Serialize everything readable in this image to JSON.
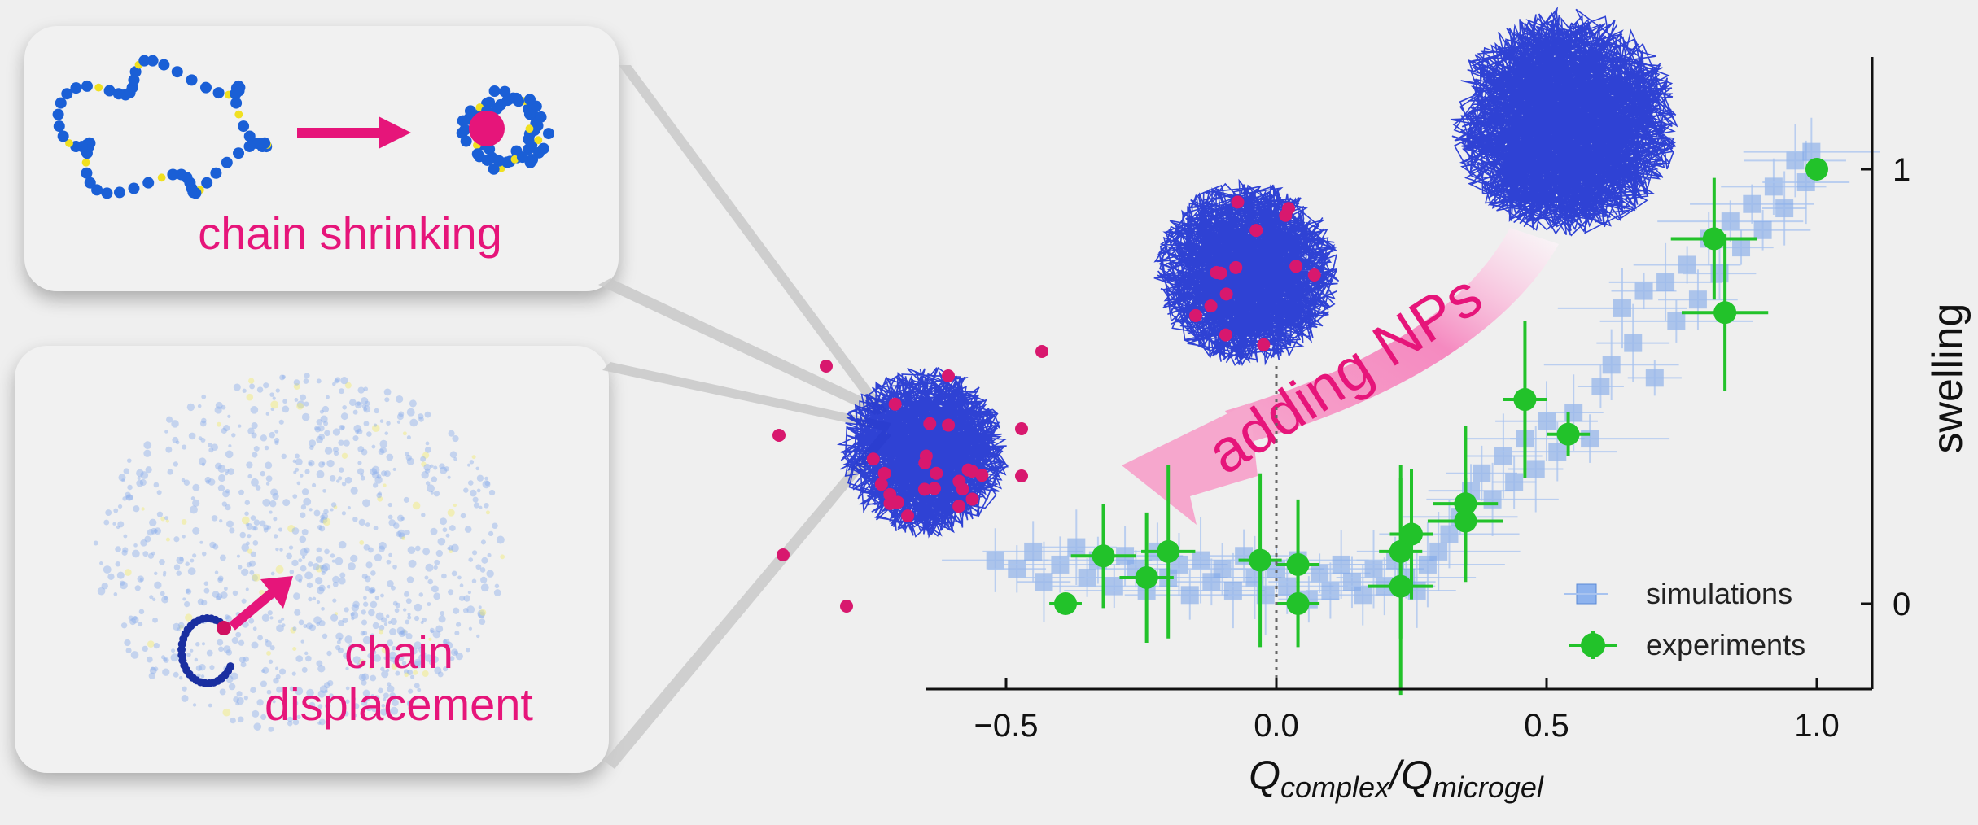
{
  "panels": {
    "top_label": "chain shrinking",
    "bottom_label_line1": "chain",
    "bottom_label_line2": "displacement"
  },
  "annotation": {
    "arrow_text": "adding NPs"
  },
  "colors": {
    "magenta": "#e6157a",
    "simulations": "#7fa8e8",
    "experiments": "#22c22a",
    "polymer": "#1a2fd0"
  },
  "icons": [
    "polymer-chain-icon",
    "nanoparticle-icon",
    "microgel-icon",
    "arrow-icon"
  ],
  "chart_data": {
    "type": "scatter",
    "title": "",
    "xlabel_main": "Q",
    "xlabel_sub1": "complex",
    "xlabel_sep": "/Q",
    "xlabel_sub2": "microgel",
    "ylabel": "swelling",
    "xlim": [
      -0.63,
      1.1
    ],
    "ylim": [
      -0.2,
      1.25
    ],
    "x_ticks": [
      -0.5,
      0.0,
      0.5,
      1.0
    ],
    "x_tick_labels": [
      "−0.5",
      "0.0",
      "0.5",
      "1.0"
    ],
    "y_ticks": [
      0,
      1
    ],
    "y_tick_labels": [
      "0",
      "1"
    ],
    "y_axis_position": "right",
    "grid": false,
    "legend_position": "bottom-right",
    "reference_line_x": 0.0,
    "series": [
      {
        "name": "simulations",
        "marker": "square",
        "points": [
          {
            "x": -0.52,
            "y": 0.1
          },
          {
            "x": -0.48,
            "y": 0.08
          },
          {
            "x": -0.45,
            "y": 0.12
          },
          {
            "x": -0.43,
            "y": 0.05
          },
          {
            "x": -0.4,
            "y": 0.09
          },
          {
            "x": -0.37,
            "y": 0.13
          },
          {
            "x": -0.35,
            "y": 0.06
          },
          {
            "x": -0.33,
            "y": 0.1
          },
          {
            "x": -0.3,
            "y": 0.04
          },
          {
            "x": -0.28,
            "y": 0.11
          },
          {
            "x": -0.26,
            "y": 0.08
          },
          {
            "x": -0.24,
            "y": 0.03
          },
          {
            "x": -0.22,
            "y": 0.12
          },
          {
            "x": -0.2,
            "y": 0.06
          },
          {
            "x": -0.18,
            "y": 0.09
          },
          {
            "x": -0.16,
            "y": 0.02
          },
          {
            "x": -0.14,
            "y": 0.1
          },
          {
            "x": -0.12,
            "y": 0.05
          },
          {
            "x": -0.1,
            "y": 0.08
          },
          {
            "x": -0.08,
            "y": 0.03
          },
          {
            "x": -0.06,
            "y": 0.11
          },
          {
            "x": -0.04,
            "y": 0.06
          },
          {
            "x": -0.02,
            "y": 0.02
          },
          {
            "x": 0.0,
            "y": 0.08
          },
          {
            "x": 0.02,
            "y": 0.04
          },
          {
            "x": 0.04,
            "y": 0.1
          },
          {
            "x": 0.06,
            "y": 0.01
          },
          {
            "x": 0.08,
            "y": 0.07
          },
          {
            "x": 0.1,
            "y": 0.03
          },
          {
            "x": 0.12,
            "y": 0.09
          },
          {
            "x": 0.14,
            "y": 0.05
          },
          {
            "x": 0.16,
            "y": 0.02
          },
          {
            "x": 0.18,
            "y": 0.08
          },
          {
            "x": 0.2,
            "y": 0.04
          },
          {
            "x": 0.22,
            "y": 0.1
          },
          {
            "x": 0.24,
            "y": 0.06
          },
          {
            "x": 0.26,
            "y": 0.03
          },
          {
            "x": 0.28,
            "y": 0.09
          },
          {
            "x": 0.3,
            "y": 0.12
          },
          {
            "x": 0.32,
            "y": 0.16
          },
          {
            "x": 0.34,
            "y": 0.2
          },
          {
            "x": 0.36,
            "y": 0.26
          },
          {
            "x": 0.38,
            "y": 0.3
          },
          {
            "x": 0.4,
            "y": 0.24
          },
          {
            "x": 0.42,
            "y": 0.34
          },
          {
            "x": 0.44,
            "y": 0.28
          },
          {
            "x": 0.46,
            "y": 0.38
          },
          {
            "x": 0.48,
            "y": 0.31
          },
          {
            "x": 0.5,
            "y": 0.42
          },
          {
            "x": 0.52,
            "y": 0.35
          },
          {
            "x": 0.55,
            "y": 0.44
          },
          {
            "x": 0.58,
            "y": 0.38
          },
          {
            "x": 0.6,
            "y": 0.5
          },
          {
            "x": 0.62,
            "y": 0.55
          },
          {
            "x": 0.64,
            "y": 0.68
          },
          {
            "x": 0.66,
            "y": 0.6
          },
          {
            "x": 0.68,
            "y": 0.72
          },
          {
            "x": 0.7,
            "y": 0.52
          },
          {
            "x": 0.72,
            "y": 0.74
          },
          {
            "x": 0.74,
            "y": 0.65
          },
          {
            "x": 0.76,
            "y": 0.78
          },
          {
            "x": 0.78,
            "y": 0.7
          },
          {
            "x": 0.8,
            "y": 0.84
          },
          {
            "x": 0.82,
            "y": 0.76
          },
          {
            "x": 0.84,
            "y": 0.88
          },
          {
            "x": 0.86,
            "y": 0.82
          },
          {
            "x": 0.88,
            "y": 0.92
          },
          {
            "x": 0.9,
            "y": 0.86
          },
          {
            "x": 0.92,
            "y": 0.96
          },
          {
            "x": 0.94,
            "y": 0.91
          },
          {
            "x": 0.96,
            "y": 1.02
          },
          {
            "x": 0.98,
            "y": 0.97
          },
          {
            "x": 0.99,
            "y": 1.04
          }
        ]
      },
      {
        "name": "experiments",
        "marker": "circle",
        "points": [
          {
            "x": -0.39,
            "y": 0.0,
            "xerr": 0.03,
            "yerr": 0.0
          },
          {
            "x": -0.32,
            "y": 0.11,
            "xerr": 0.06,
            "yerr": 0.12
          },
          {
            "x": -0.24,
            "y": 0.06,
            "xerr": 0.05,
            "yerr": 0.15
          },
          {
            "x": -0.2,
            "y": 0.12,
            "xerr": 0.05,
            "yerr": 0.2
          },
          {
            "x": -0.03,
            "y": 0.1,
            "xerr": 0.04,
            "yerr": 0.2
          },
          {
            "x": 0.04,
            "y": 0.09,
            "xerr": 0.04,
            "yerr": 0.15
          },
          {
            "x": 0.04,
            "y": 0.0,
            "xerr": 0.04,
            "yerr": 0.1
          },
          {
            "x": 0.23,
            "y": 0.04,
            "xerr": 0.06,
            "yerr": 0.25
          },
          {
            "x": 0.23,
            "y": 0.12,
            "xerr": 0.04,
            "yerr": 0.2
          },
          {
            "x": 0.25,
            "y": 0.16,
            "xerr": 0.04,
            "yerr": 0.15
          },
          {
            "x": 0.35,
            "y": 0.19,
            "xerr": 0.07,
            "yerr": 0.1
          },
          {
            "x": 0.35,
            "y": 0.23,
            "xerr": 0.06,
            "yerr": 0.18
          },
          {
            "x": 0.46,
            "y": 0.47,
            "xerr": 0.04,
            "yerr": 0.18
          },
          {
            "x": 0.54,
            "y": 0.39,
            "xerr": 0.04,
            "yerr": 0.05
          },
          {
            "x": 0.81,
            "y": 0.84,
            "xerr": 0.08,
            "yerr": 0.14
          },
          {
            "x": 0.83,
            "y": 0.67,
            "xerr": 0.08,
            "yerr": 0.18
          },
          {
            "x": 1.0,
            "y": 1.0,
            "xerr": 0.0,
            "yerr": 0.0
          }
        ]
      }
    ]
  }
}
